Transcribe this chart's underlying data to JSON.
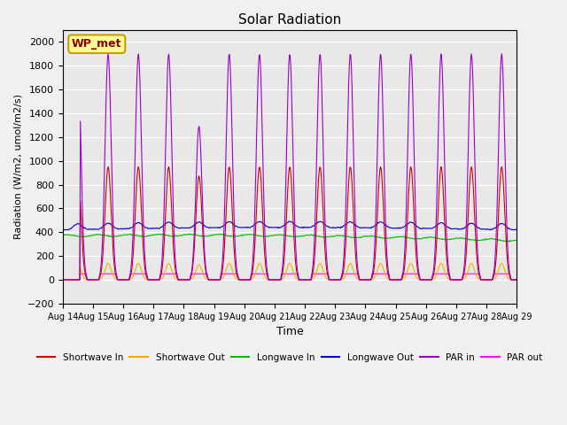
{
  "title": "Solar Radiation",
  "xlabel": "Time",
  "ylabel": "Radiation (W/m2, umol/m2/s)",
  "ylim": [
    -200,
    2100
  ],
  "yticks": [
    -200,
    0,
    200,
    400,
    600,
    800,
    1000,
    1200,
    1400,
    1600,
    1800,
    2000
  ],
  "date_start": 14,
  "date_end": 29,
  "n_days": 15,
  "colors": {
    "shortwave_in": "#cc0000",
    "shortwave_out": "#ffaa00",
    "longwave_in": "#00bb00",
    "longwave_out": "#0000cc",
    "par_in": "#9900cc",
    "par_out": "#ff00ff"
  },
  "background_color": "#e8e8e8",
  "legend_labels": [
    "Shortwave In",
    "Shortwave Out",
    "Longwave In",
    "Longwave Out",
    "PAR in",
    "PAR out"
  ],
  "site_label": "WP_met",
  "site_label_color": "#8b0000",
  "site_label_bg": "#ffff99",
  "grid_color": "#ffffff",
  "n_pts_per_day": 48
}
